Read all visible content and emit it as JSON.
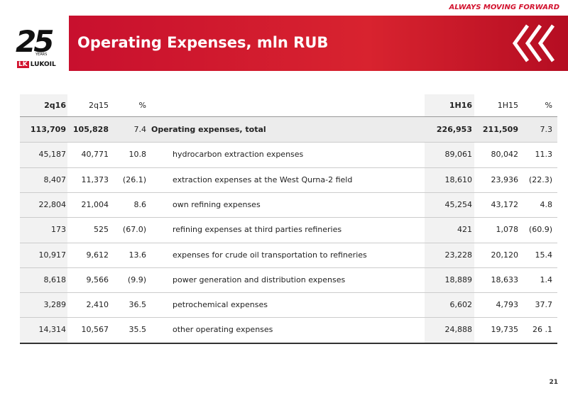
{
  "header": {
    "tagline": "ALWAYS MOVING FORWARD",
    "title": "Operating Expenses, mln RUB",
    "logo": {
      "mark": "25",
      "years": "YEARS",
      "brand": "LUKOIL"
    }
  },
  "table": {
    "columns": [
      "2q16",
      "2q15",
      "%",
      "1H16",
      "1H15",
      "%"
    ],
    "rows": [
      [
        "113,709",
        "105,828",
        "7.4",
        "Operating expenses, total",
        "226,953",
        "211,509",
        "7.3"
      ],
      [
        "45,187",
        "40,771",
        "10.8",
        "hydrocarbon extraction expenses",
        "89,061",
        "80,042",
        "11.3"
      ],
      [
        "8,407",
        "11,373",
        "(26.1)",
        "extraction expenses at the West Qurna-2 field",
        "18,610",
        "23,936",
        "(22.3)"
      ],
      [
        "22,804",
        "21,004",
        "8.6",
        "own refining expenses",
        "45,254",
        "43,172",
        "4.8"
      ],
      [
        "173",
        "525",
        "(67.0)",
        "refining expenses at third parties refineries",
        "421",
        "1,078",
        "(60.9)"
      ],
      [
        "10,917",
        "9,612",
        "13.6",
        "expenses for crude oil transportation to refineries",
        "23,228",
        "20,120",
        "15.4"
      ],
      [
        "8,618",
        "9,566",
        "(9.9)",
        "power generation and distribution expenses",
        "18,889",
        "18,633",
        "1.4"
      ],
      [
        "3,289",
        "2,410",
        "36.5",
        "petrochemical expenses",
        "6,602",
        "4,793",
        "37.7"
      ],
      [
        "14,314",
        "10,567",
        "35.5",
        "other operating expenses",
        "24,888",
        "19,735",
        "26 .1"
      ]
    ]
  },
  "page_number": "21"
}
